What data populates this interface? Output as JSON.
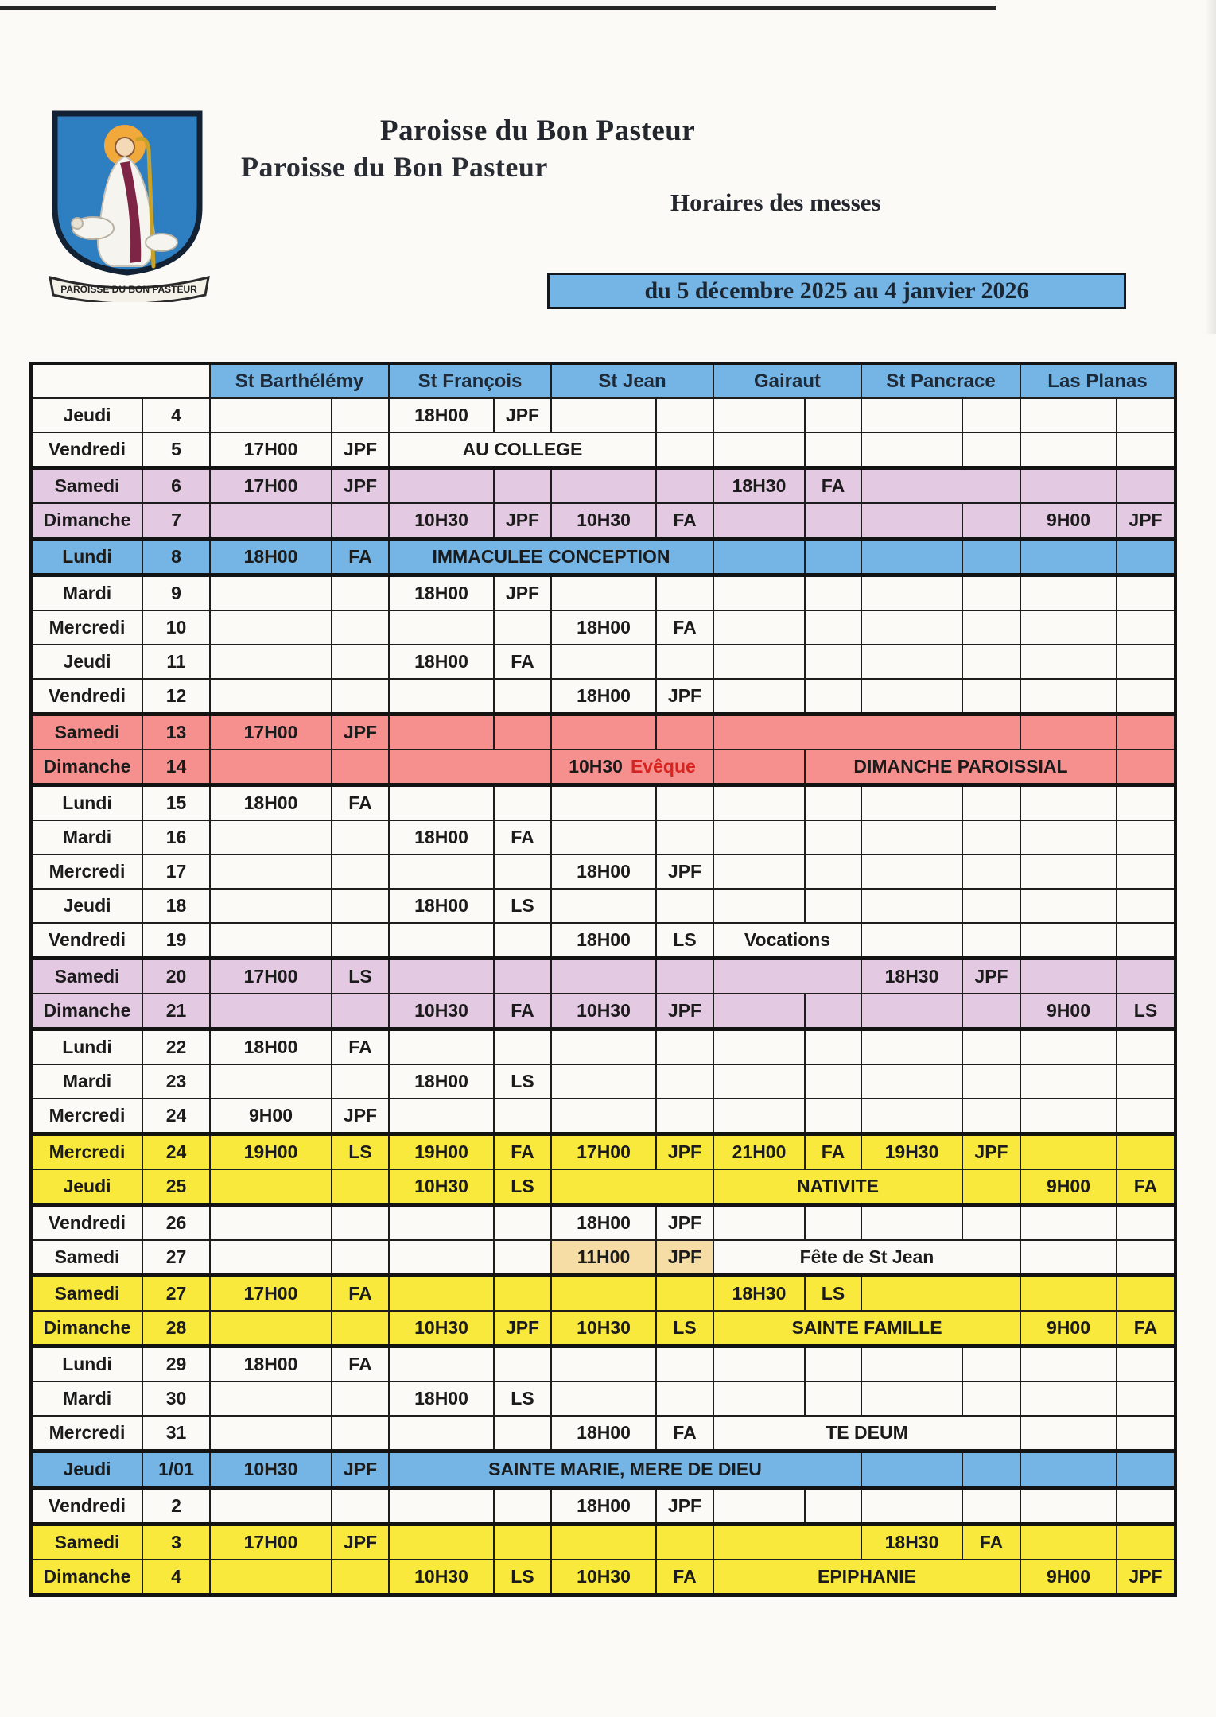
{
  "header": {
    "title": "Paroisse du Bon Pasteur",
    "title_echo": "Paroisse du Bon Pasteur",
    "subtitle": "Horaires des messes",
    "date_banner": "du 5 décembre 2025 au 4 janvier 2026",
    "logo_banner_text": "PAROISSE DU BON PASTEUR"
  },
  "colors": {
    "banner_blue": "#74b5e5",
    "row_lavender": "#e4c9e2",
    "row_salmon": "#f5908f",
    "row_yellow": "#f8e93c",
    "cell_tan": "#f6dca5",
    "accent_red": "#d8241f"
  },
  "table": {
    "locations": [
      "St Barthélémy",
      "St François",
      "St Jean",
      "Gairaut",
      "St Pancrace",
      "Las Planas"
    ],
    "rows": [
      {
        "day": "Jeudi",
        "date": "4",
        "theme": "white",
        "group": null,
        "cells": [
          {},
          {},
          {
            "text": "18H00"
          },
          {
            "text": "JPF"
          },
          {},
          {},
          {},
          {},
          {},
          {},
          {},
          {}
        ]
      },
      {
        "day": "Vendredi",
        "date": "5",
        "theme": "white",
        "group": null,
        "cells": [
          {
            "text": "17H00",
            "red": true
          },
          {
            "text": "JPF"
          },
          {
            "text": "AU COLLEGE",
            "red": true,
            "span": 3
          },
          {},
          {},
          {},
          {},
          {},
          {},
          {}
        ]
      },
      {
        "day": "Samedi",
        "date": "6",
        "theme": "lavender",
        "group": "start",
        "cells": [
          {
            "text": "17H00"
          },
          {
            "text": "JPF"
          },
          {},
          {},
          {},
          {},
          {
            "text": "18H30"
          },
          {
            "text": "FA"
          },
          {
            "hatch": true,
            "span": 2
          },
          {},
          {}
        ]
      },
      {
        "day": "Dimanche",
        "date": "7",
        "theme": "lavender",
        "group": "end",
        "cells": [
          {},
          {},
          {
            "text": "10H30"
          },
          {
            "text": "JPF"
          },
          {
            "text": "10H30"
          },
          {
            "text": "FA"
          },
          {},
          {},
          {},
          {},
          {
            "text": "9H00"
          },
          {
            "text": "JPF"
          }
        ]
      },
      {
        "day": "Lundi",
        "date": "8",
        "theme": "blue",
        "group": "both",
        "cells": [
          {
            "text": "18H00"
          },
          {
            "text": "FA"
          },
          {
            "text": "IMMACULEE CONCEPTION",
            "red": true,
            "span": 4
          },
          {},
          {},
          {},
          {},
          {},
          {}
        ]
      },
      {
        "day": "Mardi",
        "date": "9",
        "theme": "white",
        "group": null,
        "cells": [
          {},
          {},
          {
            "text": "18H00"
          },
          {
            "text": "JPF"
          },
          {},
          {},
          {},
          {},
          {},
          {},
          {},
          {}
        ]
      },
      {
        "day": "Mercredi",
        "date": "10",
        "theme": "white",
        "group": null,
        "cells": [
          {},
          {},
          {},
          {},
          {
            "text": "18H00"
          },
          {
            "text": "FA"
          },
          {},
          {},
          {},
          {},
          {},
          {}
        ]
      },
      {
        "day": "Jeudi",
        "date": "11",
        "theme": "white",
        "group": null,
        "cells": [
          {},
          {},
          {
            "text": "18H00"
          },
          {
            "text": "FA"
          },
          {},
          {},
          {},
          {},
          {},
          {},
          {},
          {}
        ]
      },
      {
        "day": "Vendredi",
        "date": "12",
        "theme": "white",
        "group": null,
        "cells": [
          {},
          {},
          {},
          {},
          {
            "text": "18H00"
          },
          {
            "text": "JPF"
          },
          {},
          {},
          {},
          {},
          {},
          {}
        ]
      },
      {
        "day": "Samedi",
        "date": "13",
        "theme": "salmon",
        "group": "start",
        "cells": [
          {
            "text": "17H00"
          },
          {
            "text": "JPF"
          },
          {},
          {},
          {},
          {},
          {
            "hatch": true,
            "span": 4
          },
          {},
          {}
        ]
      },
      {
        "day": "Dimanche",
        "date": "14",
        "theme": "salmon",
        "group": "end",
        "cells": [
          {},
          {},
          {
            "hatch": true,
            "span": 2
          },
          {
            "span": 2,
            "parts": [
              {
                "text": "10H30",
                "red": false
              },
              {
                "text": "Evêque",
                "red": true
              }
            ]
          },
          {},
          {
            "text": "DIMANCHE PAROISSIAL",
            "red": true,
            "span": 4
          },
          {}
        ]
      },
      {
        "day": "Lundi",
        "date": "15",
        "theme": "white",
        "group": null,
        "cells": [
          {
            "text": "18H00"
          },
          {
            "text": "FA"
          },
          {},
          {},
          {},
          {},
          {},
          {},
          {},
          {},
          {},
          {}
        ]
      },
      {
        "day": "Mardi",
        "date": "16",
        "theme": "white",
        "group": null,
        "cells": [
          {},
          {},
          {
            "text": "18H00"
          },
          {
            "text": "FA"
          },
          {},
          {},
          {},
          {},
          {},
          {},
          {},
          {}
        ]
      },
      {
        "day": "Mercredi",
        "date": "17",
        "theme": "white",
        "group": null,
        "cells": [
          {},
          {},
          {},
          {},
          {
            "text": "18H00"
          },
          {
            "text": "JPF"
          },
          {},
          {},
          {},
          {},
          {},
          {}
        ]
      },
      {
        "day": "Jeudi",
        "date": "18",
        "theme": "white",
        "group": null,
        "cells": [
          {},
          {},
          {
            "text": "18H00"
          },
          {
            "text": "LS"
          },
          {},
          {},
          {},
          {},
          {},
          {},
          {},
          {}
        ]
      },
      {
        "day": "Vendredi",
        "date": "19",
        "theme": "white",
        "group": null,
        "cells": [
          {},
          {},
          {},
          {},
          {
            "text": "18H00"
          },
          {
            "text": "LS"
          },
          {
            "text": "Vocations",
            "red": true,
            "span": 2
          },
          {},
          {},
          {},
          {}
        ]
      },
      {
        "day": "Samedi",
        "date": "20",
        "theme": "lavender",
        "group": "start",
        "cells": [
          {
            "text": "17H00"
          },
          {
            "text": "LS"
          },
          {},
          {},
          {},
          {},
          {
            "hatch": true,
            "span": 2
          },
          {
            "text": "18H30"
          },
          {
            "text": "JPF"
          },
          {},
          {}
        ]
      },
      {
        "day": "Dimanche",
        "date": "21",
        "theme": "lavender",
        "group": "end",
        "cells": [
          {},
          {},
          {
            "text": "10H30"
          },
          {
            "text": "FA"
          },
          {
            "text": "10H30"
          },
          {
            "text": "JPF"
          },
          {},
          {},
          {},
          {},
          {
            "text": "9H00"
          },
          {
            "text": "LS"
          }
        ]
      },
      {
        "day": "Lundi",
        "date": "22",
        "theme": "white",
        "group": null,
        "cells": [
          {
            "text": "18H00"
          },
          {
            "text": "FA"
          },
          {},
          {},
          {},
          {},
          {},
          {},
          {},
          {},
          {},
          {}
        ]
      },
      {
        "day": "Mardi",
        "date": "23",
        "theme": "white",
        "group": null,
        "cells": [
          {},
          {},
          {
            "text": "18H00"
          },
          {
            "text": "LS"
          },
          {},
          {},
          {},
          {},
          {},
          {},
          {},
          {}
        ]
      },
      {
        "day": "Mercredi",
        "date": "24",
        "theme": "white",
        "group": null,
        "cells": [
          {
            "text": "9H00",
            "red": true
          },
          {
            "text": "JPF"
          },
          {},
          {},
          {},
          {},
          {},
          {},
          {},
          {},
          {},
          {}
        ]
      },
      {
        "day": "Mercredi",
        "date": "24",
        "theme": "yellow",
        "group": "start",
        "cells": [
          {
            "text": "19H00",
            "red": true
          },
          {
            "text": "LS"
          },
          {
            "text": "19H00",
            "red": true
          },
          {
            "text": "FA"
          },
          {
            "text": "17H00",
            "red": true
          },
          {
            "text": "JPF"
          },
          {
            "text": "21H00",
            "red": true
          },
          {
            "text": "FA"
          },
          {
            "text": "19H30",
            "red": true
          },
          {
            "text": "JPF"
          },
          {},
          {}
        ]
      },
      {
        "day": "Jeudi",
        "date": "25",
        "theme": "yellow",
        "group": "end",
        "cells": [
          {},
          {},
          {
            "text": "10H30",
            "red": true
          },
          {
            "text": "LS"
          },
          {
            "hatch": true,
            "span": 2
          },
          {
            "text": "NATIVITE",
            "red": true,
            "span": 3
          },
          {},
          {
            "text": "9H00",
            "red": true
          },
          {
            "text": "FA"
          }
        ]
      },
      {
        "day": "Vendredi",
        "date": "26",
        "theme": "white",
        "group": null,
        "cells": [
          {},
          {},
          {},
          {},
          {
            "text": "18H00"
          },
          {
            "text": "JPF"
          },
          {},
          {},
          {},
          {},
          {},
          {}
        ]
      },
      {
        "day": "Samedi",
        "date": "27",
        "theme": "white",
        "group": null,
        "cells": [
          {},
          {},
          {},
          {},
          {
            "text": "11H00",
            "red": true,
            "tan": true
          },
          {
            "text": "JPF",
            "tan": true
          },
          {
            "text": "Fête de St Jean",
            "red": true,
            "span": 4
          },
          {},
          {}
        ]
      },
      {
        "day": "Samedi",
        "date": "27",
        "theme": "yellow",
        "group": "start",
        "cells": [
          {
            "text": "17H00"
          },
          {
            "text": "FA"
          },
          {},
          {},
          {},
          {},
          {
            "text": "18H30"
          },
          {
            "text": "LS"
          },
          {
            "hatch": true,
            "span": 2
          },
          {},
          {}
        ]
      },
      {
        "day": "Dimanche",
        "date": "28",
        "theme": "yellow",
        "group": "end",
        "cells": [
          {},
          {},
          {
            "text": "10H30"
          },
          {
            "text": "JPF"
          },
          {
            "text": "10H30"
          },
          {
            "text": "LS"
          },
          {
            "text": "SAINTE FAMILLE",
            "red": true,
            "span": 4
          },
          {
            "text": "9H00"
          },
          {
            "text": "FA"
          }
        ]
      },
      {
        "day": "Lundi",
        "date": "29",
        "theme": "white",
        "group": null,
        "cells": [
          {
            "text": "18H00"
          },
          {
            "text": "FA"
          },
          {},
          {},
          {},
          {},
          {},
          {},
          {},
          {},
          {},
          {}
        ]
      },
      {
        "day": "Mardi",
        "date": "30",
        "theme": "white",
        "group": null,
        "cells": [
          {},
          {},
          {
            "text": "18H00"
          },
          {
            "text": "LS"
          },
          {},
          {},
          {},
          {},
          {},
          {},
          {},
          {}
        ]
      },
      {
        "day": "Mercredi",
        "date": "31",
        "theme": "white",
        "group": null,
        "cells": [
          {},
          {},
          {},
          {},
          {
            "text": "18H00",
            "red": true
          },
          {
            "text": "FA"
          },
          {
            "text": "TE  DEUM",
            "red": true,
            "span": 4
          },
          {},
          {}
        ]
      },
      {
        "day": "Jeudi",
        "date": "1/01",
        "theme": "blue",
        "group": "both",
        "cells": [
          {
            "text": "10H30",
            "red": true
          },
          {
            "text": "JPF"
          },
          {
            "text": "SAINTE MARIE, MERE DE DIEU",
            "red": true,
            "span": 6
          },
          {},
          {},
          {},
          {}
        ]
      },
      {
        "day": "Vendredi",
        "date": "2",
        "theme": "white",
        "group": null,
        "cells": [
          {},
          {},
          {},
          {},
          {
            "text": "18H00"
          },
          {
            "text": "JPF"
          },
          {},
          {},
          {},
          {},
          {},
          {}
        ]
      },
      {
        "day": "Samedi",
        "date": "3",
        "theme": "yellow",
        "group": "start",
        "cells": [
          {
            "text": "17H00"
          },
          {
            "text": "JPF"
          },
          {},
          {},
          {},
          {},
          {
            "hatch": true,
            "span": 2
          },
          {
            "text": "18H30"
          },
          {
            "text": "FA"
          },
          {},
          {}
        ]
      },
      {
        "day": "Dimanche",
        "date": "4",
        "theme": "yellow",
        "group": "end",
        "cells": [
          {},
          {},
          {
            "text": "10H30"
          },
          {
            "text": "LS"
          },
          {
            "text": "10H30"
          },
          {
            "text": "FA"
          },
          {
            "text": "EPIPHANIE",
            "red": true,
            "span": 4
          },
          {
            "text": "9H00"
          },
          {
            "text": "JPF"
          }
        ]
      }
    ]
  }
}
